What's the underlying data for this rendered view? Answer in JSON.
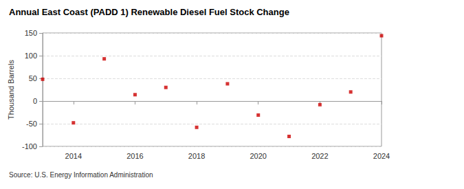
{
  "chart_data": {
    "type": "scatter",
    "title": "Annual East Coast (PADD 1) Renewable Diesel Fuel Stock Change",
    "y_label": "Thousand Barrels",
    "source": "Source: U.S. Energy Information Administration",
    "x": [
      2013,
      2014,
      2015,
      2016,
      2017,
      2018,
      2019,
      2020,
      2021,
      2022,
      2023,
      2024
    ],
    "values": [
      48,
      -48,
      93,
      14,
      30,
      -58,
      38,
      -31,
      -78,
      -8,
      20,
      144
    ],
    "color": "#cc0000",
    "marker": "square",
    "xlim": [
      2013,
      2024
    ],
    "xticks": [
      2014,
      2016,
      2018,
      2020,
      2022,
      2024
    ],
    "ylim": [
      -100,
      150
    ],
    "yticks": [
      -100,
      -50,
      0,
      50,
      100,
      150
    ],
    "grid": true
  }
}
